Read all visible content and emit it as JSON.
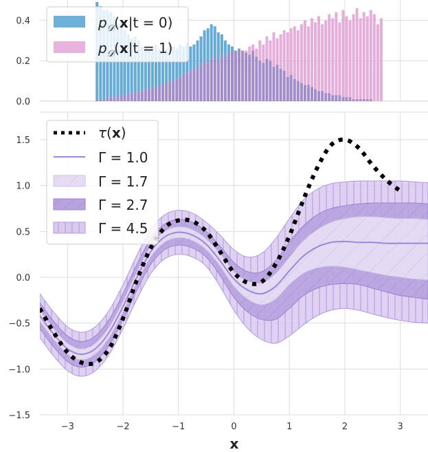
{
  "chart_data": [
    {
      "type": "bar",
      "subtype": "histogram",
      "xlim": [
        -3.5,
        3.5
      ],
      "ylim": [
        0,
        0.5
      ],
      "yticks": [
        "0.0",
        "0.2",
        "0.4"
      ],
      "grid": true,
      "legend_placement": "top-left",
      "colors": {
        "t0": "#4a9ccf",
        "t1": "#e0a0d5",
        "overlap": "#8f79bf"
      },
      "bin_width": 0.0625,
      "series": [
        {
          "name_plain": "pD(x|t = 0)",
          "x_start": -2.5,
          "values": [
            0.49,
            0.47,
            0.45,
            0.45,
            0.44,
            0.42,
            0.38,
            0.39,
            0.35,
            0.33,
            0.31,
            0.32,
            0.3,
            0.27,
            0.26,
            0.25,
            0.27,
            0.28,
            0.26,
            0.24,
            0.26,
            0.28,
            0.27,
            0.26,
            0.28,
            0.27,
            0.29,
            0.27,
            0.28,
            0.3,
            0.32,
            0.35,
            0.36,
            0.38,
            0.37,
            0.34,
            0.33,
            0.3,
            0.28,
            0.27,
            0.25,
            0.26,
            0.25,
            0.24,
            0.23,
            0.25,
            0.22,
            0.2,
            0.19,
            0.21,
            0.2,
            0.17,
            0.18,
            0.16,
            0.15,
            0.12,
            0.13,
            0.11,
            0.1,
            0.09,
            0.08,
            0.08,
            0.07,
            0.06,
            0.05,
            0.05,
            0.04,
            0.04,
            0.03,
            0.03,
            0.03,
            0.02,
            0.02,
            0.02,
            0.01,
            0.01,
            0.01,
            0.01,
            0.01,
            0.01,
            0.0
          ]
        },
        {
          "name_plain": "pD(x|t = 1)",
          "x_start": -2.5,
          "values": [
            0.01,
            0.01,
            0.01,
            0.02,
            0.02,
            0.02,
            0.02,
            0.03,
            0.03,
            0.04,
            0.04,
            0.04,
            0.05,
            0.05,
            0.06,
            0.06,
            0.07,
            0.07,
            0.08,
            0.08,
            0.09,
            0.1,
            0.1,
            0.11,
            0.12,
            0.13,
            0.14,
            0.15,
            0.16,
            0.17,
            0.18,
            0.2,
            0.19,
            0.21,
            0.22,
            0.2,
            0.23,
            0.22,
            0.24,
            0.25,
            0.24,
            0.26,
            0.25,
            0.25,
            0.27,
            0.28,
            0.26,
            0.3,
            0.28,
            0.32,
            0.3,
            0.34,
            0.31,
            0.33,
            0.35,
            0.34,
            0.36,
            0.37,
            0.35,
            0.38,
            0.4,
            0.37,
            0.41,
            0.39,
            0.42,
            0.38,
            0.4,
            0.43,
            0.41,
            0.44,
            0.39,
            0.45,
            0.42,
            0.4,
            0.43,
            0.46,
            0.41,
            0.44,
            0.42,
            0.45,
            0.43,
            0.38,
            0.41
          ]
        }
      ]
    },
    {
      "type": "line",
      "xlim": [
        -3.5,
        3.5
      ],
      "ylim": [
        -1.5,
        1.8
      ],
      "xticks": [
        -3,
        -2,
        -1,
        0,
        1,
        2,
        3
      ],
      "yticks": [
        -1.5,
        -1.0,
        -0.5,
        0.0,
        0.5,
        1.0,
        1.5
      ],
      "xtick_labels": [
        "−3",
        "−2",
        "−1",
        "0",
        "1",
        "2",
        "3"
      ],
      "ytick_labels": [
        "−1.5",
        "−1.0",
        "−0.5",
        "0.0",
        "0.5",
        "1.0",
        "1.5"
      ],
      "xlabel": "x",
      "grid": true,
      "legend_placement": "top-left",
      "colors": {
        "line": "#9e86d6",
        "band_light": "#e6ddf3",
        "band_mid": "#b8a3de",
        "band_outer": "#d9c9ef",
        "tau": "#000000"
      },
      "x": [
        -3.5,
        -3.25,
        -3.0,
        -2.75,
        -2.5,
        -2.25,
        -2.0,
        -1.75,
        -1.5,
        -1.25,
        -1.0,
        -0.75,
        -0.5,
        -0.25,
        0.0,
        0.25,
        0.5,
        0.75,
        1.0,
        1.25,
        1.5,
        1.75,
        2.0,
        2.25,
        2.5,
        2.75,
        3.0,
        3.25,
        3.5
      ],
      "tau": [
        -0.34,
        -0.6,
        -0.82,
        -0.93,
        -0.93,
        -0.78,
        -0.45,
        -0.03,
        0.32,
        0.54,
        0.62,
        0.61,
        0.5,
        0.28,
        0.05,
        -0.06,
        -0.05,
        0.14,
        0.45,
        0.84,
        1.19,
        1.44,
        1.5,
        1.41,
        1.22,
        1.06,
        0.94
      ],
      "tau_x": [
        -3.5,
        -3.25,
        -3.0,
        -2.75,
        -2.5,
        -2.25,
        -2.0,
        -1.75,
        -1.5,
        -1.25,
        -1.0,
        -0.75,
        -0.5,
        -0.25,
        0.0,
        0.25,
        0.5,
        0.75,
        1.0,
        1.25,
        1.5,
        1.75,
        2.0,
        2.25,
        2.5,
        2.75,
        3.0
      ],
      "series": [
        {
          "name_plain": "Γ = 1.0",
          "style": "line",
          "y": [
            -0.42,
            -0.62,
            -0.78,
            -0.84,
            -0.78,
            -0.6,
            -0.32,
            0.0,
            0.28,
            0.44,
            0.49,
            0.46,
            0.36,
            0.18,
            -0.02,
            -0.14,
            -0.18,
            -0.1,
            0.07,
            0.23,
            0.33,
            0.38,
            0.39,
            0.38,
            0.38,
            0.37,
            0.37,
            0.37,
            0.37
          ]
        },
        {
          "name_plain": "Γ = 1.7",
          "style": "band",
          "lower": [
            -0.48,
            -0.68,
            -0.84,
            -0.9,
            -0.84,
            -0.66,
            -0.38,
            -0.06,
            0.22,
            0.38,
            0.43,
            0.4,
            0.3,
            0.12,
            -0.1,
            -0.24,
            -0.3,
            -0.24,
            -0.08,
            0.04,
            0.1,
            0.12,
            0.11,
            0.08,
            0.05,
            0.02,
            0.0,
            -0.02,
            -0.03
          ],
          "upper": [
            -0.36,
            -0.56,
            -0.72,
            -0.78,
            -0.72,
            -0.54,
            -0.26,
            0.06,
            0.34,
            0.5,
            0.55,
            0.52,
            0.42,
            0.26,
            0.06,
            -0.04,
            -0.06,
            0.04,
            0.22,
            0.4,
            0.52,
            0.6,
            0.64,
            0.66,
            0.66,
            0.65,
            0.64,
            0.64,
            0.63
          ]
        },
        {
          "name_plain": "Γ = 2.7",
          "style": "band",
          "lower": [
            -0.56,
            -0.76,
            -0.92,
            -0.98,
            -0.92,
            -0.74,
            -0.46,
            -0.14,
            0.14,
            0.3,
            0.35,
            0.32,
            0.22,
            0.02,
            -0.22,
            -0.38,
            -0.46,
            -0.46,
            -0.34,
            -0.2,
            -0.12,
            -0.08,
            -0.07,
            -0.08,
            -0.12,
            -0.16,
            -0.2,
            -0.22,
            -0.24
          ],
          "upper": [
            -0.28,
            -0.48,
            -0.64,
            -0.7,
            -0.64,
            -0.46,
            -0.18,
            0.14,
            0.42,
            0.58,
            0.63,
            0.6,
            0.5,
            0.34,
            0.16,
            0.06,
            0.06,
            0.18,
            0.38,
            0.56,
            0.68,
            0.75,
            0.78,
            0.8,
            0.81,
            0.81,
            0.81,
            0.81,
            0.8
          ]
        },
        {
          "name_plain": "Γ = 4.5",
          "style": "band",
          "lower": [
            -0.66,
            -0.86,
            -1.02,
            -1.08,
            -1.02,
            -0.84,
            -0.56,
            -0.24,
            0.04,
            0.2,
            0.25,
            0.22,
            0.12,
            -0.1,
            -0.36,
            -0.56,
            -0.68,
            -0.72,
            -0.64,
            -0.52,
            -0.42,
            -0.36,
            -0.34,
            -0.36,
            -0.4,
            -0.44,
            -0.47,
            -0.49,
            -0.5
          ],
          "upper": [
            -0.18,
            -0.38,
            -0.54,
            -0.6,
            -0.54,
            -0.36,
            -0.08,
            0.24,
            0.52,
            0.68,
            0.73,
            0.7,
            0.6,
            0.46,
            0.3,
            0.22,
            0.26,
            0.42,
            0.64,
            0.84,
            0.96,
            1.02,
            1.04,
            1.05,
            1.05,
            1.05,
            1.05,
            1.04,
            1.03
          ]
        }
      ]
    }
  ]
}
